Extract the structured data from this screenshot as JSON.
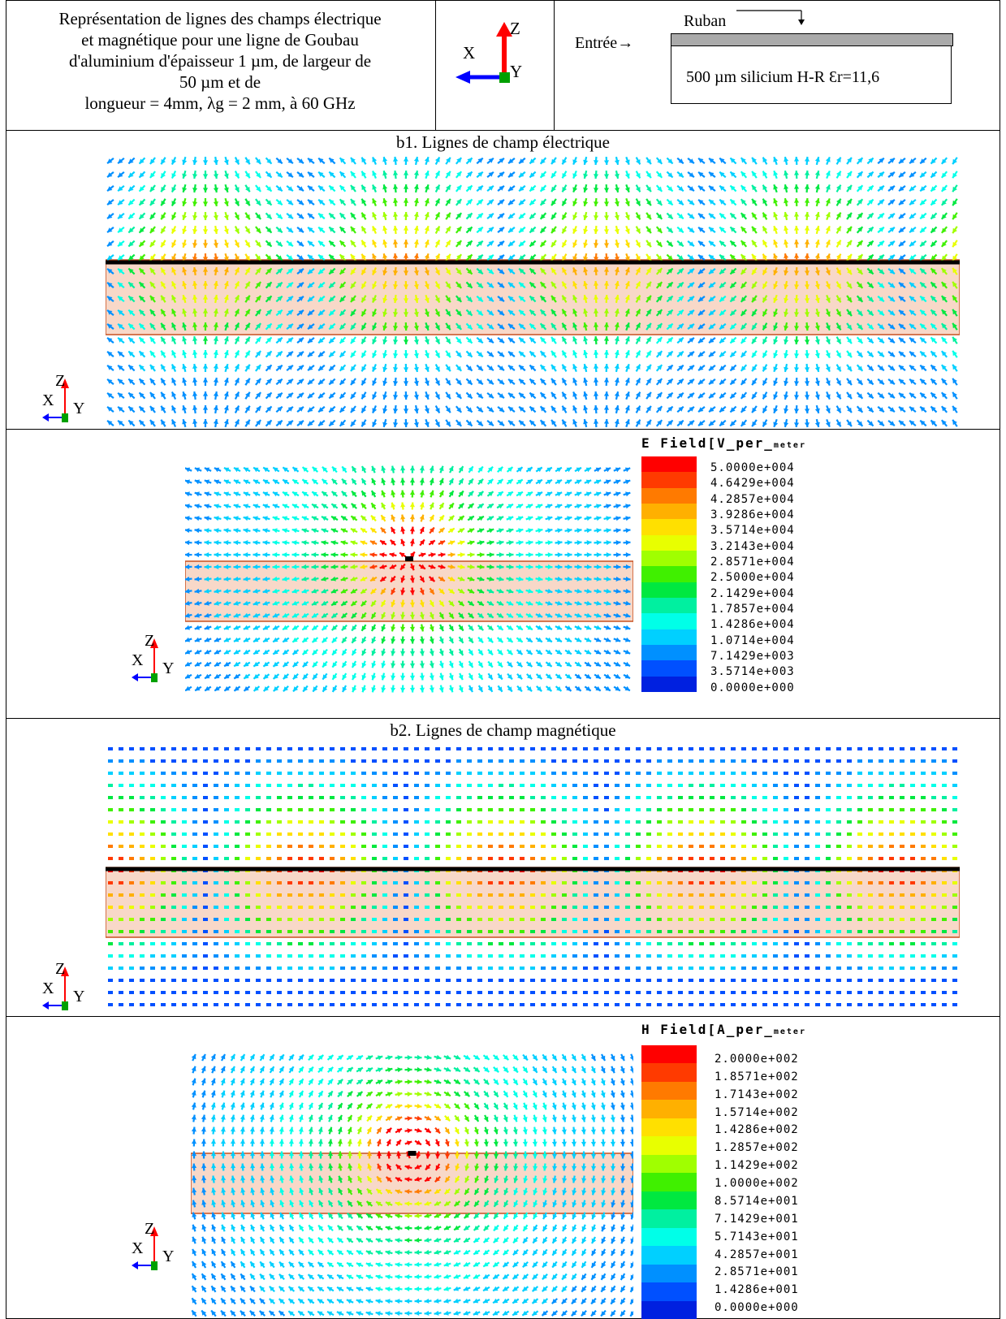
{
  "header": {
    "description_lines": [
      "Représentation de lignes des champs électrique",
      "et magnétique pour une ligne de Goubau",
      "d'aluminium d'épaisseur 1 µm, de largeur de",
      "50 µm et de",
      "longueur = 4mm, λg = 2 mm, à 60 GHz"
    ],
    "axes": {
      "z": "Z",
      "x": "X",
      "y": "Y"
    },
    "entry_label": "Entrée→",
    "ruban_label": "Ruban",
    "substrate_label": "500 µm silicium H-R Ɛr=11,6"
  },
  "sections": {
    "b1_title": "b1. Lignes de champ électrique",
    "b2_title": "b2. Lignes de champ magnétique"
  },
  "e_field": {
    "title_main": "E Field[V_per_",
    "title_unit": "meter",
    "scale": [
      "5.0000e+004",
      "4.6429e+004",
      "4.2857e+004",
      "3.9286e+004",
      "3.5714e+004",
      "3.2143e+004",
      "2.8571e+004",
      "2.5000e+004",
      "2.1429e+004",
      "1.7857e+004",
      "1.4286e+004",
      "1.0714e+004",
      "7.1429e+003",
      "3.5714e+003",
      "0.0000e+000"
    ]
  },
  "h_field": {
    "title_main": "H Field[A_per_",
    "title_unit": "meter",
    "scale": [
      "2.0000e+002",
      "1.8571e+002",
      "1.7143e+002",
      "1.5714e+002",
      "1.4286e+002",
      "1.2857e+002",
      "1.1429e+002",
      "1.0000e+002",
      "8.5714e+001",
      "7.1429e+001",
      "5.7143e+001",
      "4.2857e+001",
      "2.8571e+001",
      "1.4286e+001",
      "0.0000e+000"
    ]
  },
  "colors": {
    "scale": [
      "#ff0000",
      "#ff3a00",
      "#ff7a00",
      "#ffb000",
      "#ffe000",
      "#e8ff00",
      "#a0ff00",
      "#40f000",
      "#00e840",
      "#00f0a0",
      "#00ffe8",
      "#00d0ff",
      "#0090ff",
      "#0050ff",
      "#0020e0"
    ],
    "substrate_fill": "#f8d8c8",
    "substrate_edge": "#c85020",
    "z_axis": "#ff0000",
    "y_axis": "#00a000",
    "x_axis": "#0000ff"
  }
}
